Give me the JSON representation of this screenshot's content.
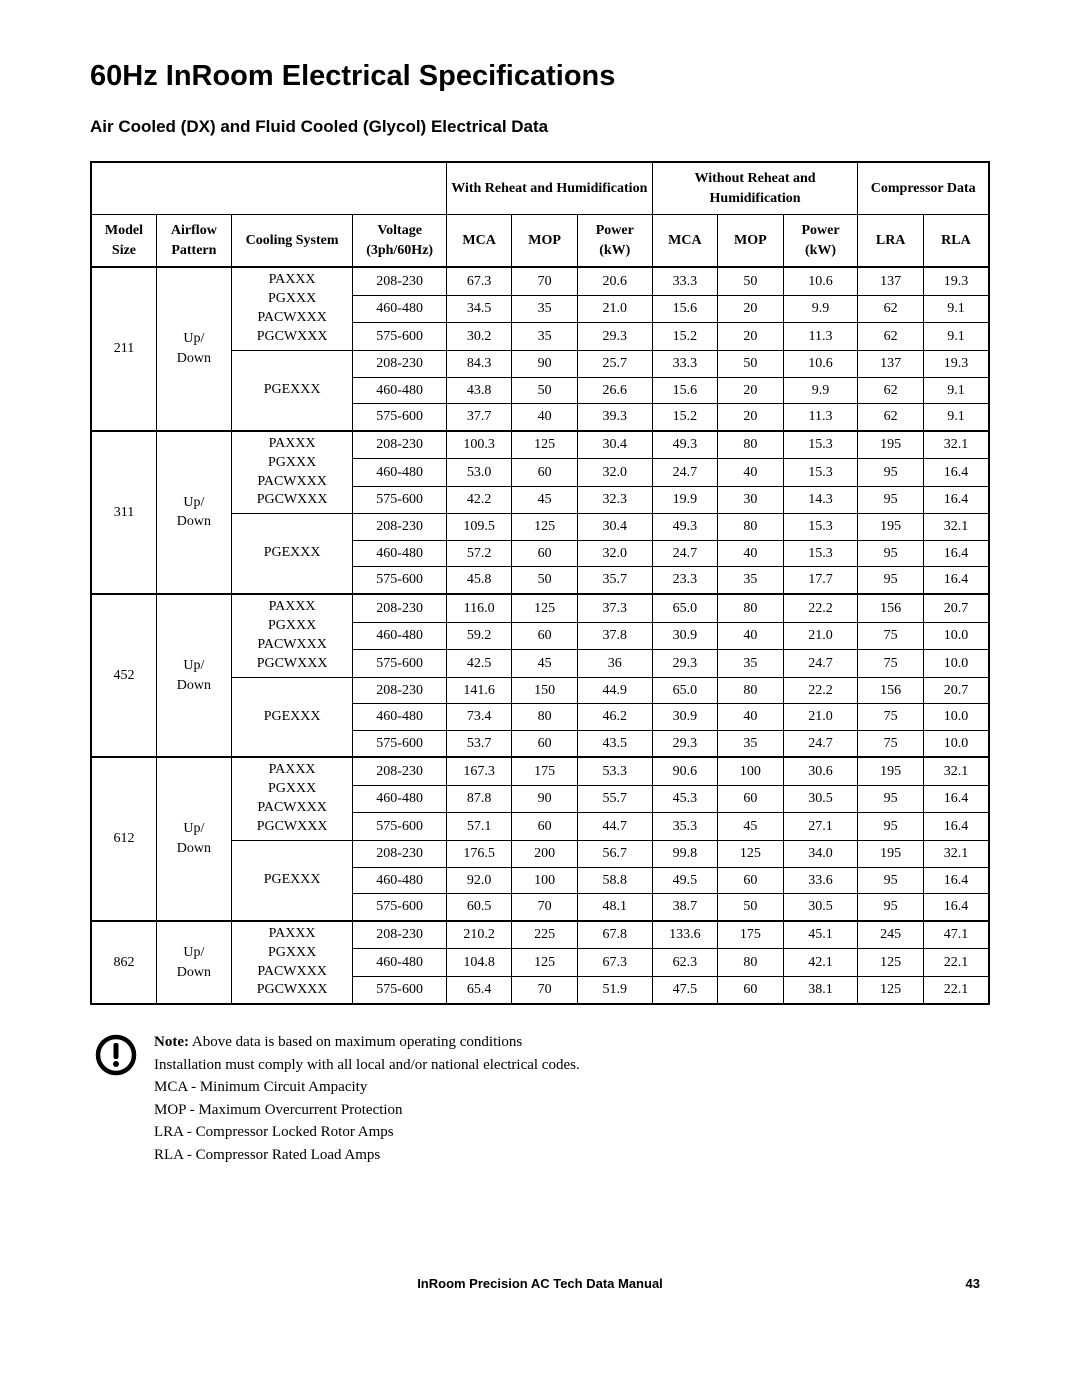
{
  "title": "60Hz InRoom Electrical Specifications",
  "subtitle": "Air Cooled (DX) and Fluid Cooled (Glycol) Electrical Data",
  "header": {
    "group1": "With Reheat and Humidification",
    "group2": "Without Reheat and Humidification",
    "group3": "Compressor Data",
    "col_model": "Model Size",
    "col_airflow": "Airflow Pattern",
    "col_cooling": "Cooling System",
    "col_voltage": "Voltage (3ph/60Hz)",
    "col_mca1": "MCA",
    "col_mop1": "MOP",
    "col_pwr1": "Power (kW)",
    "col_mca2": "MCA",
    "col_mop2": "MOP",
    "col_pwr2": "Power (kW)",
    "col_lra": "LRA",
    "col_rla": "RLA"
  },
  "airflow_label": "Up/ Down",
  "coolingA": "PAXXX\nPGXXX\nPACWXXX\nPGCWXXX",
  "coolingB": "PGEXXX",
  "groups": [
    {
      "model": "211",
      "blocks": [
        {
          "cooling": "A",
          "rows": [
            [
              "208-230",
              "67.3",
              "70",
              "20.6",
              "33.3",
              "50",
              "10.6",
              "137",
              "19.3"
            ],
            [
              "460-480",
              "34.5",
              "35",
              "21.0",
              "15.6",
              "20",
              "9.9",
              "62",
              "9.1"
            ],
            [
              "575-600",
              "30.2",
              "35",
              "29.3",
              "15.2",
              "20",
              "11.3",
              "62",
              "9.1"
            ]
          ]
        },
        {
          "cooling": "B",
          "rows": [
            [
              "208-230",
              "84.3",
              "90",
              "25.7",
              "33.3",
              "50",
              "10.6",
              "137",
              "19.3"
            ],
            [
              "460-480",
              "43.8",
              "50",
              "26.6",
              "15.6",
              "20",
              "9.9",
              "62",
              "9.1"
            ],
            [
              "575-600",
              "37.7",
              "40",
              "39.3",
              "15.2",
              "20",
              "11.3",
              "62",
              "9.1"
            ]
          ]
        }
      ]
    },
    {
      "model": "311",
      "blocks": [
        {
          "cooling": "A",
          "rows": [
            [
              "208-230",
              "100.3",
              "125",
              "30.4",
              "49.3",
              "80",
              "15.3",
              "195",
              "32.1"
            ],
            [
              "460-480",
              "53.0",
              "60",
              "32.0",
              "24.7",
              "40",
              "15.3",
              "95",
              "16.4"
            ],
            [
              "575-600",
              "42.2",
              "45",
              "32.3",
              "19.9",
              "30",
              "14.3",
              "95",
              "16.4"
            ]
          ]
        },
        {
          "cooling": "B",
          "rows": [
            [
              "208-230",
              "109.5",
              "125",
              "30.4",
              "49.3",
              "80",
              "15.3",
              "195",
              "32.1"
            ],
            [
              "460-480",
              "57.2",
              "60",
              "32.0",
              "24.7",
              "40",
              "15.3",
              "95",
              "16.4"
            ],
            [
              "575-600",
              "45.8",
              "50",
              "35.7",
              "23.3",
              "35",
              "17.7",
              "95",
              "16.4"
            ]
          ]
        }
      ]
    },
    {
      "model": "452",
      "blocks": [
        {
          "cooling": "A",
          "rows": [
            [
              "208-230",
              "116.0",
              "125",
              "37.3",
              "65.0",
              "80",
              "22.2",
              "156",
              "20.7"
            ],
            [
              "460-480",
              "59.2",
              "60",
              "37.8",
              "30.9",
              "40",
              "21.0",
              "75",
              "10.0"
            ],
            [
              "575-600",
              "42.5",
              "45",
              "36",
              "29.3",
              "35",
              "24.7",
              "75",
              "10.0"
            ]
          ]
        },
        {
          "cooling": "B",
          "rows": [
            [
              "208-230",
              "141.6",
              "150",
              "44.9",
              "65.0",
              "80",
              "22.2",
              "156",
              "20.7"
            ],
            [
              "460-480",
              "73.4",
              "80",
              "46.2",
              "30.9",
              "40",
              "21.0",
              "75",
              "10.0"
            ],
            [
              "575-600",
              "53.7",
              "60",
              "43.5",
              "29.3",
              "35",
              "24.7",
              "75",
              "10.0"
            ]
          ]
        }
      ]
    },
    {
      "model": "612",
      "blocks": [
        {
          "cooling": "A",
          "rows": [
            [
              "208-230",
              "167.3",
              "175",
              "53.3",
              "90.6",
              "100",
              "30.6",
              "195",
              "32.1"
            ],
            [
              "460-480",
              "87.8",
              "90",
              "55.7",
              "45.3",
              "60",
              "30.5",
              "95",
              "16.4"
            ],
            [
              "575-600",
              "57.1",
              "60",
              "44.7",
              "35.3",
              "45",
              "27.1",
              "95",
              "16.4"
            ]
          ]
        },
        {
          "cooling": "B",
          "rows": [
            [
              "208-230",
              "176.5",
              "200",
              "56.7",
              "99.8",
              "125",
              "34.0",
              "195",
              "32.1"
            ],
            [
              "460-480",
              "92.0",
              "100",
              "58.8",
              "49.5",
              "60",
              "33.6",
              "95",
              "16.4"
            ],
            [
              "575-600",
              "60.5",
              "70",
              "48.1",
              "38.7",
              "50",
              "30.5",
              "95",
              "16.4"
            ]
          ]
        }
      ]
    },
    {
      "model": "862",
      "blocks": [
        {
          "cooling": "A",
          "rows": [
            [
              "208-230",
              "210.2",
              "225",
              "67.8",
              "133.6",
              "175",
              "45.1",
              "245",
              "47.1"
            ],
            [
              "460-480",
              "104.8",
              "125",
              "67.3",
              "62.3",
              "80",
              "42.1",
              "125",
              "22.1"
            ],
            [
              "575-600",
              "65.4",
              "70",
              "51.9",
              "47.5",
              "60",
              "38.1",
              "125",
              "22.1"
            ]
          ]
        }
      ]
    }
  ],
  "note": {
    "label": "Note:",
    "line1": " Above data is based on maximum operating conditions",
    "line2": "Installation must comply with all local and/or national electrical codes.",
    "line3": "MCA - Minimum Circuit Ampacity",
    "line4": "MOP - Maximum Overcurrent Protection",
    "line5": "LRA - Compressor Locked Rotor Amps",
    "line6": "RLA - Compressor Rated Load Amps"
  },
  "footer": {
    "title": "InRoom Precision AC Tech Data Manual",
    "page": "43"
  },
  "style": {
    "colwidths_pct": [
      7,
      8,
      13,
      10,
      7,
      7,
      8,
      7,
      7,
      8,
      7,
      7
    ]
  }
}
